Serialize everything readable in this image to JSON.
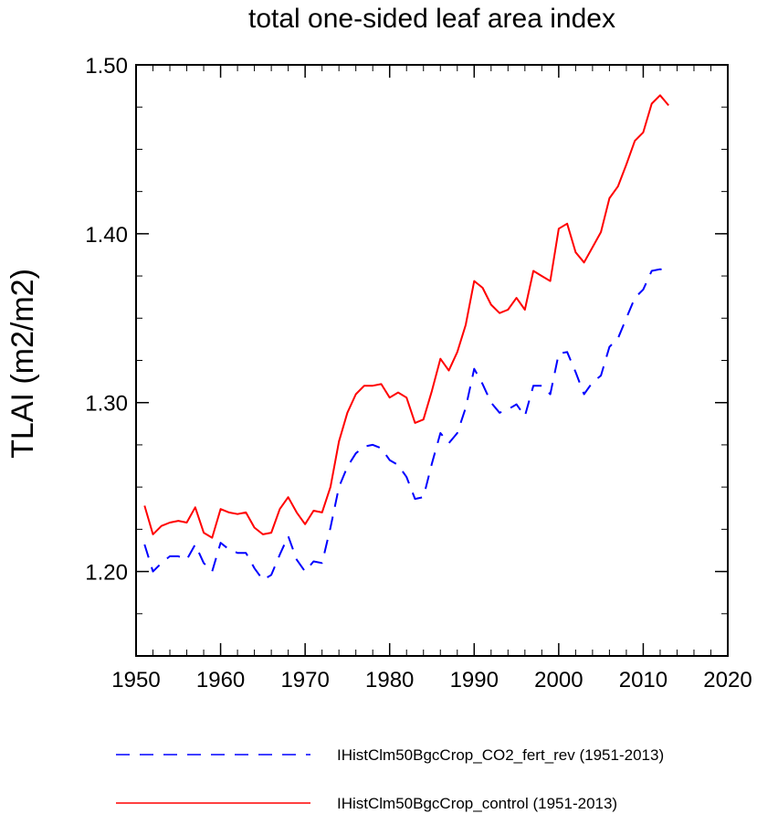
{
  "chart_data": {
    "type": "line",
    "title": "total one-sided leaf area index",
    "xlabel": "",
    "ylabel": "TLAI  (m2/m2)",
    "xlim": [
      1950,
      2020
    ],
    "ylim": [
      1.15,
      1.5
    ],
    "xticks": [
      1950,
      1960,
      1970,
      1980,
      1990,
      2000,
      2010,
      2020
    ],
    "xtick_labels": [
      "1950",
      "1960",
      "1970",
      "1980",
      "1990",
      "2000",
      "2010",
      "2020"
    ],
    "yticks": [
      1.2,
      1.3,
      1.4,
      1.5
    ],
    "ytick_labels": [
      "1.20",
      "1.30",
      "1.40",
      "1.50"
    ],
    "grid": false,
    "legend_position": "bottom",
    "x": [
      1951,
      1952,
      1953,
      1954,
      1955,
      1956,
      1957,
      1958,
      1959,
      1960,
      1961,
      1962,
      1963,
      1964,
      1965,
      1966,
      1967,
      1968,
      1969,
      1970,
      1971,
      1972,
      1973,
      1974,
      1975,
      1976,
      1977,
      1978,
      1979,
      1980,
      1981,
      1982,
      1983,
      1984,
      1985,
      1986,
      1987,
      1988,
      1989,
      1990,
      1991,
      1992,
      1993,
      1994,
      1995,
      1996,
      1997,
      1998,
      1999,
      2000,
      2001,
      2002,
      2003,
      2004,
      2005,
      2006,
      2007,
      2008,
      2009,
      2010,
      2011,
      2012,
      2013
    ],
    "series": [
      {
        "name": "IHistClm50BgcCrop_CO2_fert_rev (1951-2013)",
        "color": "#0000ff",
        "dash": "dashed",
        "values": [
          1.216,
          1.2,
          1.205,
          1.209,
          1.209,
          1.207,
          1.216,
          1.205,
          1.2,
          1.217,
          1.213,
          1.211,
          1.211,
          1.202,
          1.195,
          1.198,
          1.21,
          1.221,
          1.207,
          1.2,
          1.206,
          1.205,
          1.226,
          1.25,
          1.262,
          1.27,
          1.274,
          1.275,
          1.273,
          1.266,
          1.263,
          1.256,
          1.243,
          1.244,
          1.264,
          1.282,
          1.276,
          1.282,
          1.297,
          1.32,
          1.311,
          1.3,
          1.294,
          1.296,
          1.299,
          1.292,
          1.31,
          1.31,
          1.305,
          1.329,
          1.33,
          1.318,
          1.305,
          1.312,
          1.316,
          1.333,
          1.338,
          1.35,
          1.362,
          1.367,
          1.378,
          1.379,
          1.378
        ]
      },
      {
        "name": "IHistClm50BgcCrop_control (1951-2013)",
        "color": "#ff0000",
        "dash": "solid",
        "values": [
          1.239,
          1.222,
          1.227,
          1.229,
          1.23,
          1.229,
          1.238,
          1.223,
          1.22,
          1.237,
          1.235,
          1.234,
          1.235,
          1.226,
          1.222,
          1.223,
          1.237,
          1.244,
          1.235,
          1.228,
          1.236,
          1.235,
          1.25,
          1.277,
          1.294,
          1.305,
          1.31,
          1.31,
          1.311,
          1.303,
          1.306,
          1.303,
          1.288,
          1.29,
          1.307,
          1.326,
          1.319,
          1.33,
          1.346,
          1.372,
          1.368,
          1.358,
          1.353,
          1.355,
          1.362,
          1.355,
          1.378,
          1.375,
          1.372,
          1.403,
          1.406,
          1.389,
          1.383,
          1.392,
          1.401,
          1.421,
          1.428,
          1.441,
          1.455,
          1.46,
          1.477,
          1.482,
          1.476
        ]
      }
    ]
  }
}
